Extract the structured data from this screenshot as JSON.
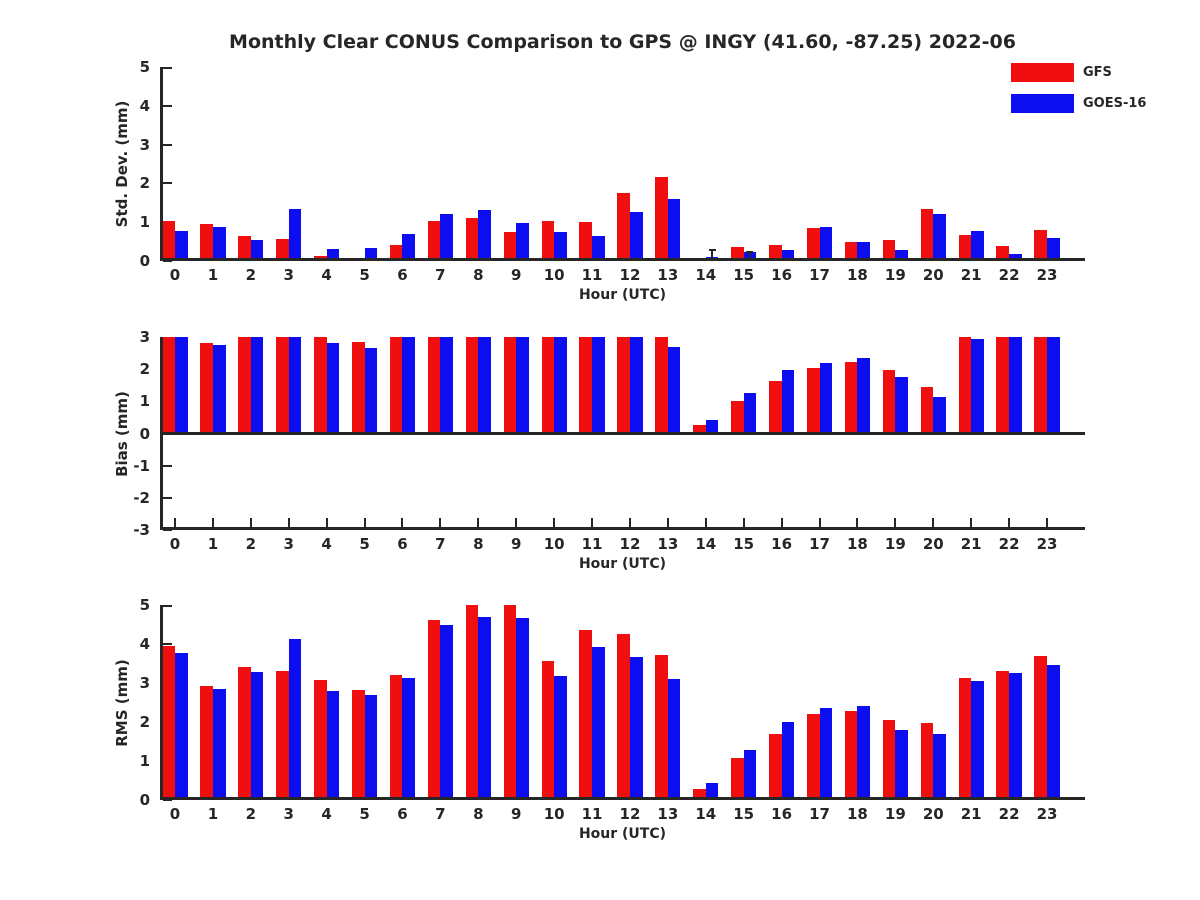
{
  "title": "Monthly Clear CONUS Comparison to GPS @ INGY (41.60, -87.25) 2022-06",
  "colors": {
    "gfs": "#f10e0e",
    "goes16": "#0d0df1",
    "axis": "#262626",
    "background": "#ffffff"
  },
  "legend": {
    "items": [
      {
        "label": "GFS",
        "color": "#f10e0e"
      },
      {
        "label": "GOES-16",
        "color": "#0d0df1"
      }
    ]
  },
  "chart_data": [
    {
      "type": "bar",
      "name": "std-dev",
      "ylabel": "Std. Dev. (mm)",
      "xlabel": "Hour (UTC)",
      "ylim": [
        0,
        5
      ],
      "yticks": [
        5,
        4,
        3,
        2,
        1,
        0
      ],
      "baseline": 0,
      "zero_line": false,
      "bottom_tick_marks": false,
      "grid": false,
      "legend_position": "top-right-of-figure",
      "categories": [
        "0",
        "1",
        "2",
        "3",
        "4",
        "5",
        "6",
        "7",
        "8",
        "9",
        "10",
        "11",
        "12",
        "13",
        "14",
        "15",
        "16",
        "17",
        "18",
        "19",
        "20",
        "21",
        "22",
        "23"
      ],
      "series": [
        {
          "name": "GFS",
          "color": "#f10e0e",
          "values": [
            1.02,
            0.95,
            0.65,
            0.58,
            0.13,
            0.06,
            0.4,
            1.02,
            1.12,
            0.76,
            1.03,
            1.0,
            1.75,
            2.17,
            0.08,
            0.37,
            0.4,
            0.84,
            0.48,
            0.55,
            1.35,
            0.67,
            0.38,
            0.79
          ]
        },
        {
          "name": "GOES-16",
          "color": "#0d0df1",
          "values": [
            0.78,
            0.88,
            0.55,
            1.33,
            0.3,
            0.34,
            0.7,
            1.22,
            1.31,
            0.99,
            0.76,
            0.65,
            1.27,
            1.6,
            0.1,
            0.22,
            0.28,
            0.87,
            0.49,
            0.28,
            1.21,
            0.78,
            0.17,
            0.6
          ]
        }
      ],
      "whiskers": [
        {
          "series": "GOES-16",
          "hour": 14,
          "top": 0.3
        },
        {
          "series": "GOES-16",
          "hour": 15,
          "top": 0.27
        }
      ]
    },
    {
      "type": "bar",
      "name": "bias",
      "ylabel": "Bias (mm)",
      "xlabel": "Hour (UTC)",
      "ylim": [
        -3,
        3
      ],
      "yticks": [
        3,
        2,
        1,
        0,
        -1,
        -2,
        -3
      ],
      "baseline": 0,
      "zero_line": true,
      "bottom_tick_marks": true,
      "grid": false,
      "categories": [
        "0",
        "1",
        "2",
        "3",
        "4",
        "5",
        "6",
        "7",
        "8",
        "9",
        "10",
        "11",
        "12",
        "13",
        "14",
        "15",
        "16",
        "17",
        "18",
        "19",
        "20",
        "21",
        "22",
        "23"
      ],
      "series": [
        {
          "name": "GFS",
          "color": "#f10e0e",
          "values": [
            3.0,
            2.82,
            3.0,
            3.0,
            3.0,
            2.84,
            3.0,
            3.0,
            3.0,
            3.0,
            3.0,
            3.0,
            3.0,
            3.0,
            0.26,
            1.02,
            1.62,
            2.04,
            2.22,
            1.98,
            1.44,
            3.0,
            3.0,
            3.0
          ]
        },
        {
          "name": "GOES-16",
          "color": "#0d0df1",
          "values": [
            3.0,
            2.74,
            3.0,
            3.0,
            2.81,
            2.66,
            3.0,
            3.0,
            3.0,
            3.0,
            3.0,
            3.0,
            3.0,
            2.68,
            0.41,
            1.26,
            1.98,
            2.18,
            2.34,
            1.75,
            1.14,
            2.93,
            3.0,
            3.0
          ]
        }
      ],
      "whiskers": []
    },
    {
      "type": "bar",
      "name": "rms",
      "ylabel": "RMS (mm)",
      "xlabel": "Hour (UTC)",
      "ylim": [
        0,
        5
      ],
      "yticks": [
        5,
        4,
        3,
        2,
        1,
        0
      ],
      "baseline": 0,
      "zero_line": false,
      "bottom_tick_marks": false,
      "grid": false,
      "categories": [
        "0",
        "1",
        "2",
        "3",
        "4",
        "5",
        "6",
        "7",
        "8",
        "9",
        "10",
        "11",
        "12",
        "13",
        "14",
        "15",
        "16",
        "17",
        "18",
        "19",
        "20",
        "21",
        "22",
        "23"
      ],
      "series": [
        {
          "name": "GFS",
          "color": "#f10e0e",
          "values": [
            3.95,
            2.93,
            3.42,
            3.3,
            3.08,
            2.83,
            3.21,
            4.62,
            5.0,
            5.0,
            3.57,
            4.37,
            4.25,
            3.73,
            0.28,
            1.08,
            1.7,
            2.21,
            2.27,
            2.06,
            1.98,
            3.13,
            3.32,
            3.68
          ]
        },
        {
          "name": "GOES-16",
          "color": "#0d0df1",
          "values": [
            3.78,
            2.85,
            3.28,
            4.12,
            2.8,
            2.68,
            3.14,
            4.5,
            4.7,
            4.67,
            3.17,
            3.92,
            3.66,
            3.11,
            0.44,
            1.29,
            2.01,
            2.36,
            2.42,
            1.8,
            1.7,
            3.04,
            3.26,
            3.47
          ]
        }
      ],
      "whiskers": []
    }
  ]
}
